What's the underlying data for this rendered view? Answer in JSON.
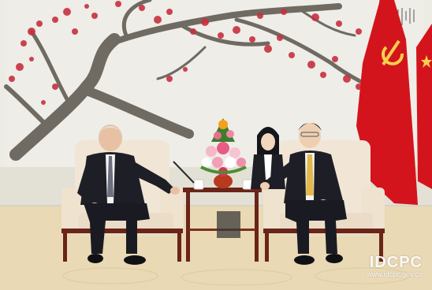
{
  "image": {
    "subject": "formal meeting in a reception hall",
    "colors": {
      "wall": "#ecebe4",
      "mural_branch": "#6f6a62",
      "blossom": "#c8303f",
      "armchair": "#f1e6d6",
      "chair_frame": "#6b2418",
      "flag_red": "#d4141c",
      "flag_yellow": "#f6d04d",
      "carpet": "#e9d9b4",
      "suit_dark": "#1e1f26",
      "tie_gold": "#e2b84a"
    }
  },
  "watermark": {
    "logo": "IDCPC",
    "url": "www.idcpc.gov.cn"
  }
}
